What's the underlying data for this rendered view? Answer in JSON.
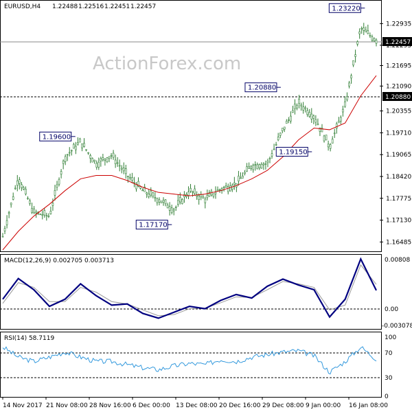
{
  "header": {
    "symbol": "EURUSD,H4",
    "open": "1.22488",
    "high": "1.22516",
    "low": "1.22451",
    "close": "1.22457"
  },
  "watermark": "ActionForex.com",
  "colors": {
    "candle": "#2e7d32",
    "ma": "#cc0000",
    "macd_main": "#000080",
    "macd_signal": "#999999",
    "rsi": "#3399dd",
    "label_border": "#000066",
    "current_tag_bg": "#000000",
    "current_tag_fg": "#ffffff"
  },
  "price_panel": {
    "ylim": [
      1.1625,
      1.2355
    ],
    "ticks": [
      "1.22935",
      "1.22295",
      "1.21695",
      "1.21090",
      "1.20355",
      "1.19710",
      "1.19065",
      "1.18420",
      "1.17775",
      "1.17130",
      "1.16485"
    ],
    "current_price": "1.22457",
    "ref_level": "1.20880",
    "annotations": [
      {
        "text": "1.23220",
        "value": 1.2322,
        "date_index": 115
      },
      {
        "text": "1.20880",
        "value": 1.2088,
        "date_index": 88
      },
      {
        "text": "1.19600",
        "value": 1.196,
        "date_index": 22
      },
      {
        "text": "1.19150",
        "value": 1.1915,
        "date_index": 98
      },
      {
        "text": "1.17170",
        "value": 1.1717,
        "date_index": 53
      }
    ]
  },
  "macd_panel": {
    "title": "MACD(12,26,9) 0.002705 0.003713",
    "ticks": [
      "0.00808",
      "0.00",
      "-0.003078"
    ],
    "ylim": [
      -0.0037,
      0.0086
    ]
  },
  "rsi_panel": {
    "title": "RSI(14) 58.7119",
    "ticks": [
      "100",
      "70",
      "30",
      "0"
    ],
    "ylim": [
      0,
      100
    ]
  },
  "x_axis": {
    "labels": [
      "14 Nov 2017",
      "21 Nov 08:00",
      "28 Nov 16:00",
      "6 Dec 00:00",
      "13 Dec 08:00",
      "20 Dec 16:00",
      "29 Dec 08:00",
      "9 Jan 00:00",
      "16 Jan 08:00"
    ]
  },
  "chart_data": [
    {
      "type": "candlestick",
      "title": "EURUSD,H4",
      "ylim": [
        1.1625,
        1.2355
      ],
      "x": [
        0,
        5,
        10,
        15,
        20,
        25,
        30,
        35,
        40,
        45,
        50,
        55,
        60,
        65,
        70,
        75,
        80,
        85,
        90,
        95,
        100,
        105,
        110,
        115,
        120
      ],
      "close": [
        1.1665,
        1.184,
        1.1735,
        1.1725,
        1.19,
        1.1945,
        1.188,
        1.1905,
        1.1845,
        1.18,
        1.1775,
        1.1745,
        1.18,
        1.1775,
        1.1805,
        1.182,
        1.1875,
        1.188,
        1.198,
        1.206,
        1.202,
        1.193,
        1.205,
        1.228,
        1.2245
      ],
      "moving_average": [
        1.1625,
        1.168,
        1.1725,
        1.176,
        1.18,
        1.1835,
        1.1845,
        1.1845,
        1.183,
        1.181,
        1.1795,
        1.179,
        1.1785,
        1.179,
        1.18,
        1.1815,
        1.1835,
        1.186,
        1.19,
        1.195,
        1.1985,
        1.198,
        1.2,
        1.208,
        1.214
      ]
    },
    {
      "type": "line",
      "title": "MACD(12,26,9)",
      "ylim": [
        -0.0037,
        0.0086
      ],
      "x": [
        0,
        5,
        10,
        15,
        20,
        25,
        30,
        35,
        40,
        45,
        50,
        55,
        60,
        65,
        70,
        75,
        80,
        85,
        90,
        95,
        100,
        105,
        110,
        115,
        120
      ],
      "series": [
        {
          "name": "0.002705",
          "values": [
            0.0012,
            0.0047,
            0.0028,
            0.0,
            0.0012,
            0.0038,
            0.0018,
            0.0002,
            0.0004,
            -0.0012,
            -0.002,
            -0.001,
            0.0,
            -0.0004,
            0.001,
            0.002,
            0.0014,
            0.0034,
            0.0046,
            0.0036,
            0.0028,
            -0.0018,
            0.0012,
            0.008,
            0.0027
          ]
        },
        {
          "name": "0.003713",
          "values": [
            0.0005,
            0.004,
            0.0032,
            0.0008,
            0.0008,
            0.0032,
            0.0024,
            0.0008,
            0.0004,
            -0.0006,
            -0.0016,
            -0.0014,
            -0.0004,
            -0.0003,
            0.0006,
            0.0016,
            0.0015,
            0.0028,
            0.0042,
            0.0038,
            0.0032,
            -0.0006,
            0.0002,
            0.007,
            0.0037
          ]
        }
      ]
    },
    {
      "type": "line",
      "title": "RSI(14)",
      "ylim": [
        0,
        100
      ],
      "x": [
        0,
        5,
        10,
        15,
        20,
        25,
        30,
        35,
        40,
        45,
        50,
        55,
        60,
        65,
        70,
        75,
        80,
        85,
        90,
        95,
        100,
        105,
        110,
        115,
        120
      ],
      "series": [
        {
          "name": "58.7119",
          "values": [
            78,
            62,
            55,
            62,
            70,
            62,
            55,
            55,
            50,
            45,
            42,
            48,
            52,
            50,
            58,
            55,
            62,
            66,
            70,
            72,
            64,
            38,
            55,
            78,
            58.7
          ]
        }
      ]
    }
  ]
}
